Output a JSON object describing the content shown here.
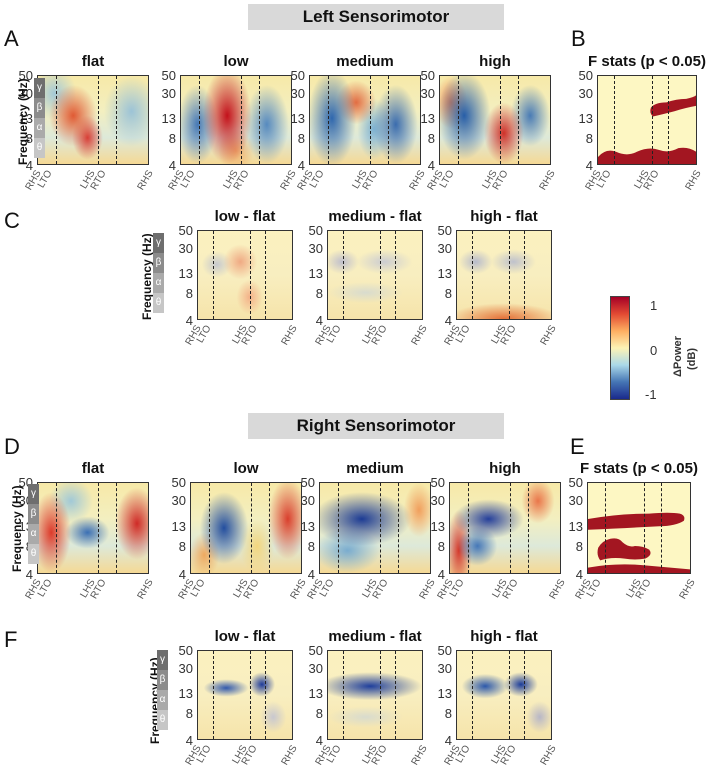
{
  "sections": {
    "left": "Left Sensorimotor",
    "right": "Right Sensorimotor"
  },
  "letters": {
    "A": "A",
    "B": "B",
    "C": "C",
    "D": "D",
    "E": "E",
    "F": "F"
  },
  "row_titles": {
    "A": [
      "flat",
      "low",
      "medium",
      "high"
    ],
    "B": "F stats (p < 0.05)",
    "C": [
      "low - flat",
      "medium - flat",
      "high - flat"
    ],
    "D": [
      "flat",
      "low",
      "medium",
      "high"
    ],
    "E": "F stats (p < 0.05)",
    "F": [
      "low - flat",
      "medium - flat",
      "high - flat"
    ]
  },
  "axes": {
    "ylabel": "Frequency (Hz)",
    "yticks": [
      "50",
      "30",
      "13",
      "8",
      "4"
    ],
    "xticks": [
      "RHS",
      "LTO",
      "LHS",
      "RTO",
      "RHS"
    ],
    "bands": [
      "γ",
      "β",
      "α",
      "θ"
    ]
  },
  "colorbar": {
    "label": "ΔPower (dB)",
    "label_line1": "ΔPower",
    "label_line2": "(dB)",
    "max": "1",
    "mid": "0",
    "min": "-1",
    "colors": [
      "#a50026",
      "#fdf3b5",
      "#1a2a8c"
    ]
  },
  "f_stats_colors": {
    "background": "#fdf7c3",
    "significant": "#a31621"
  }
}
